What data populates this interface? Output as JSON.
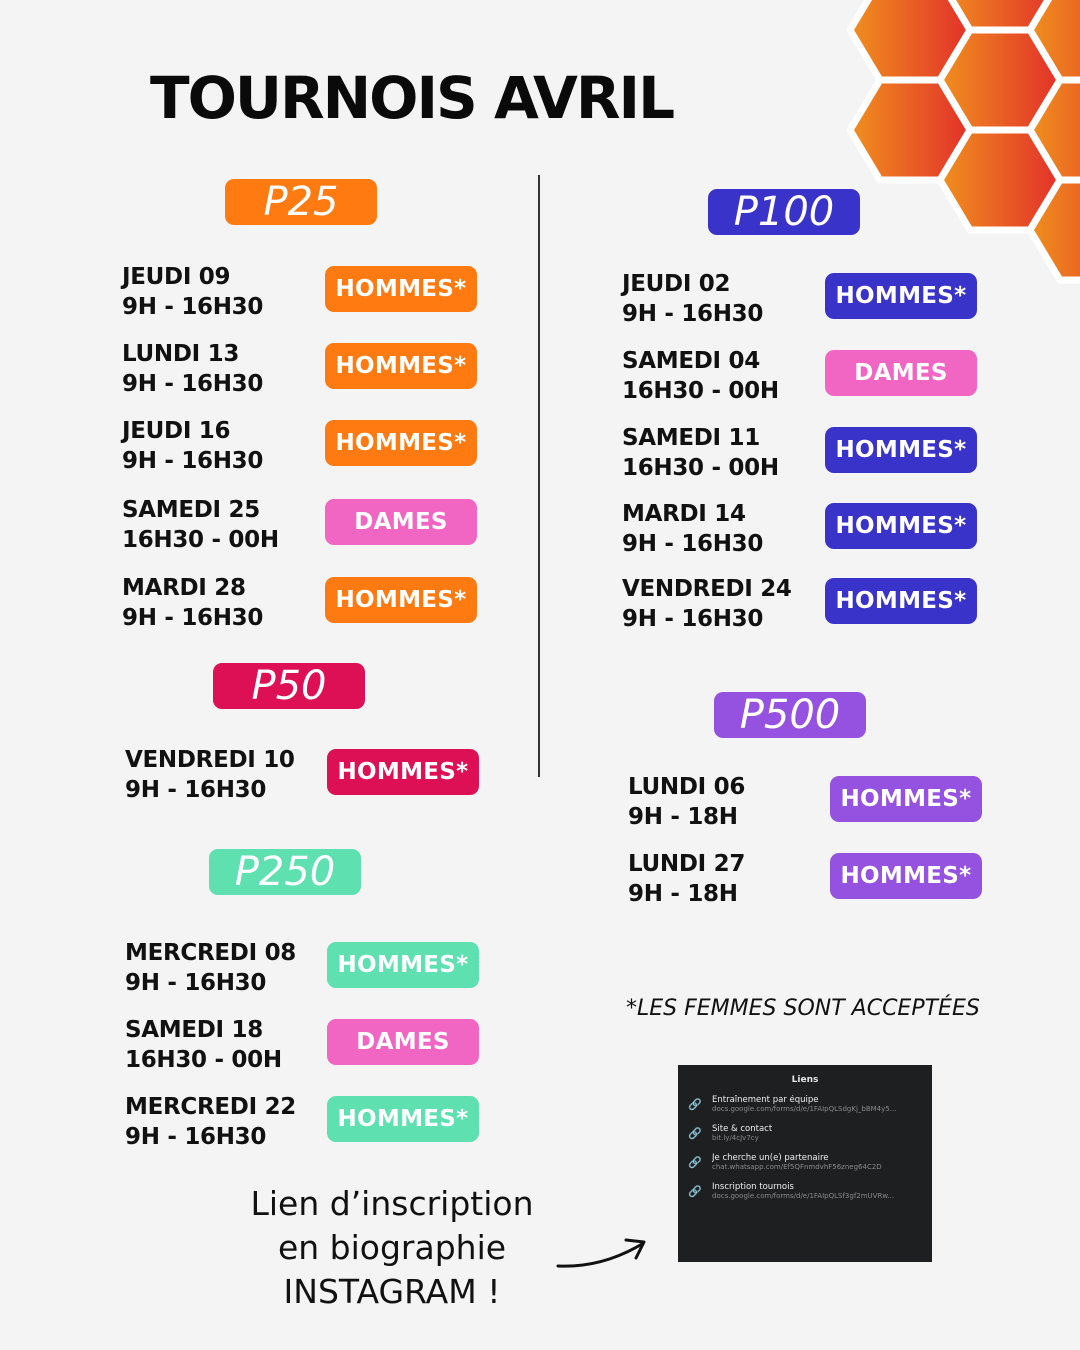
{
  "title": "TOURNOIS AVRIL",
  "colors": {
    "orange": "#ff7a10",
    "crimson": "#dd1056",
    "mint": "#5ee0b0",
    "indigo": "#3a33c9",
    "violet": "#9552e0",
    "pink": "#f166c3"
  },
  "sections": [
    {
      "key": "p25",
      "label": "P25",
      "color": "orange",
      "rows": [
        {
          "day": "JEUDI 09",
          "time": "9H - 16H30",
          "tag": "HOMMES*"
        },
        {
          "day": "LUNDI 13",
          "time": "9H - 16H30",
          "tag": "HOMMES*"
        },
        {
          "day": "JEUDI 16",
          "time": "9H - 16H30",
          "tag": "HOMMES*"
        },
        {
          "day": "SAMEDI 25",
          "time": "16H30 - 00H",
          "tag": "DAMES"
        },
        {
          "day": "MARDI 28",
          "time": "9H - 16H30",
          "tag": "HOMMES*"
        }
      ]
    },
    {
      "key": "p50",
      "label": "P50",
      "color": "crimson",
      "rows": [
        {
          "day": "VENDREDI 10",
          "time": "9H - 16H30",
          "tag": "HOMMES*"
        }
      ]
    },
    {
      "key": "p250",
      "label": "P250",
      "color": "mint",
      "rows": [
        {
          "day": "MERCREDI 08",
          "time": "9H - 16H30",
          "tag": "HOMMES*"
        },
        {
          "day": "SAMEDI 18",
          "time": "16H30 - 00H",
          "tag": "DAMES"
        },
        {
          "day": "MERCREDI 22",
          "time": "9H - 16H30",
          "tag": "HOMMES*"
        }
      ]
    },
    {
      "key": "p100",
      "label": "P100",
      "color": "indigo",
      "rows": [
        {
          "day": "JEUDI 02",
          "time": "9H - 16H30",
          "tag": "HOMMES*"
        },
        {
          "day": "SAMEDI 04",
          "time": "16H30 - 00H",
          "tag": "DAMES"
        },
        {
          "day": "SAMEDI 11",
          "time": "16H30 - 00H",
          "tag": "HOMMES*"
        },
        {
          "day": "MARDI 14",
          "time": "9H - 16H30",
          "tag": "HOMMES*"
        },
        {
          "day": "VENDREDI 24",
          "time": "9H - 16H30",
          "tag": "HOMMES*"
        }
      ]
    },
    {
      "key": "p500",
      "label": "P500",
      "color": "violet",
      "rows": [
        {
          "day": "LUNDI 06",
          "time": "9H - 18H",
          "tag": "HOMMES*"
        },
        {
          "day": "LUNDI 27",
          "time": "9H - 18H",
          "tag": "HOMMES*"
        }
      ]
    }
  ],
  "note": "*LES FEMMES SONT ACCEPTÉES",
  "promo": [
    "Lien d’inscription",
    "en biographie",
    "INSTAGRAM !"
  ],
  "links_panel": {
    "title": "Liens",
    "items": [
      {
        "label": "Entraînement par équipe",
        "url": "docs.google.com/forms/d/e/1FAIpQLSdgKj_bBM4y5...",
        "icon": "link-icon"
      },
      {
        "label": "Site & contact",
        "url": "bit.ly/4cJv7cy",
        "icon": "link-icon"
      },
      {
        "label": "Je cherche un(e) partenaire",
        "url": "chat.whatsapp.com/Ef5QFnmdvhF56zneg64C2D",
        "icon": "link-icon"
      },
      {
        "label": "Inscription tournois",
        "url": "docs.google.com/forms/d/e/1FAIpQLSf3gf2mUVRw...",
        "icon": "link-icon"
      }
    ]
  }
}
